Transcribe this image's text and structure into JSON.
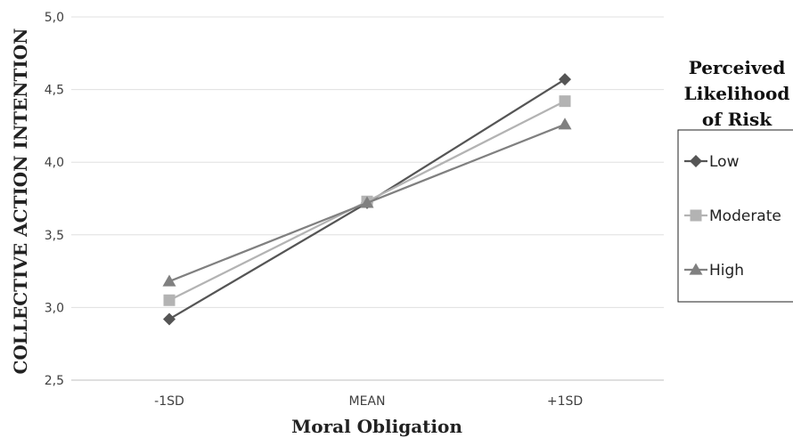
{
  "chart_data": {
    "type": "line",
    "categories": [
      "-1SD",
      "MEAN",
      "+1SD"
    ],
    "xlabel": "Moral Obligation",
    "ylabel": "COLLECTIVE ACTION INTENTION",
    "ylim": [
      2.5,
      5.0
    ],
    "yticks": [
      "2,5",
      "3,0",
      "3,5",
      "4,0",
      "4,5",
      "5,0"
    ],
    "grid": true,
    "legend": {
      "title_lines": [
        "Perceived",
        "Likelihood",
        "of Risk"
      ],
      "position": "right"
    },
    "series": [
      {
        "name": "Low",
        "values": [
          2.92,
          3.72,
          4.57
        ],
        "color": "#555555",
        "marker": "diamond"
      },
      {
        "name": "Moderate",
        "values": [
          3.05,
          3.73,
          4.42
        ],
        "color": "#b3b3b3",
        "marker": "square"
      },
      {
        "name": "High",
        "values": [
          3.18,
          3.72,
          4.26
        ],
        "color": "#808080",
        "marker": "triangle"
      }
    ]
  }
}
